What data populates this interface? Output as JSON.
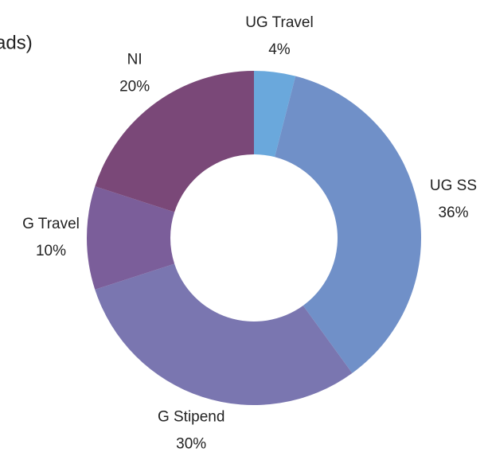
{
  "chart_data": {
    "type": "donut",
    "title": "ads)",
    "categories": [
      "UG Travel",
      "UG SS",
      "G Stipend",
      "G Travel",
      "NI"
    ],
    "values": [
      4,
      36,
      30,
      10,
      20
    ],
    "value_labels": [
      "4%",
      "36%",
      "30%",
      "10%",
      "20%"
    ],
    "colors": [
      "#6aa8dc",
      "#7090c8",
      "#7a76b0",
      "#7b5e9a",
      "#7a4878"
    ]
  }
}
